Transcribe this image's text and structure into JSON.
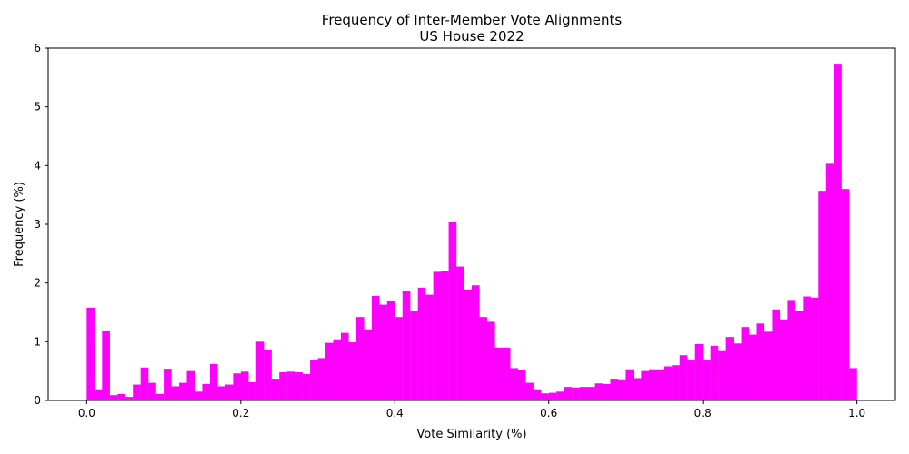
{
  "chart_data": {
    "type": "bar",
    "title": "Frequency of Inter-Member Vote Alignments",
    "subtitle": "US House 2022",
    "xlabel": "Vote Similarity (%)",
    "ylabel": "Frequency (%)",
    "xlim": [
      -0.05,
      1.05
    ],
    "ylim": [
      0,
      6
    ],
    "xticks": [
      {
        "value": 0.0,
        "label": "0.0"
      },
      {
        "value": 0.2,
        "label": "0.2"
      },
      {
        "value": 0.4,
        "label": "0.4"
      },
      {
        "value": 0.6,
        "label": "0.6"
      },
      {
        "value": 0.8,
        "label": "0.8"
      },
      {
        "value": 1.0,
        "label": "1.0"
      }
    ],
    "yticks": [
      {
        "value": 0,
        "label": "0"
      },
      {
        "value": 1,
        "label": "1"
      },
      {
        "value": 2,
        "label": "2"
      },
      {
        "value": 3,
        "label": "3"
      },
      {
        "value": 4,
        "label": "4"
      },
      {
        "value": 5,
        "label": "5"
      },
      {
        "value": 6,
        "label": "6"
      }
    ],
    "bar_color": "#ff00ff",
    "bins": {
      "start": 0.0,
      "end": 1.0,
      "count": 100
    },
    "values": [
      1.58,
      0.19,
      1.19,
      0.09,
      0.11,
      0.06,
      0.27,
      0.56,
      0.3,
      0.11,
      0.54,
      0.24,
      0.3,
      0.5,
      0.15,
      0.28,
      0.62,
      0.24,
      0.27,
      0.46,
      0.49,
      0.31,
      1.0,
      0.86,
      0.37,
      0.48,
      0.49,
      0.48,
      0.45,
      0.68,
      0.72,
      0.98,
      1.04,
      1.15,
      0.99,
      1.42,
      1.21,
      1.78,
      1.63,
      1.7,
      1.42,
      1.86,
      1.53,
      1.92,
      1.8,
      2.19,
      2.2,
      3.04,
      2.28,
      1.89,
      1.96,
      1.42,
      1.34,
      0.9,
      0.9,
      0.55,
      0.51,
      0.3,
      0.19,
      0.12,
      0.13,
      0.15,
      0.23,
      0.22,
      0.23,
      0.23,
      0.29,
      0.28,
      0.37,
      0.36,
      0.53,
      0.38,
      0.5,
      0.53,
      0.53,
      0.58,
      0.6,
      0.77,
      0.68,
      0.96,
      0.68,
      0.93,
      0.84,
      1.08,
      0.97,
      1.25,
      1.12,
      1.31,
      1.17,
      1.55,
      1.38,
      1.71,
      1.53,
      1.77,
      1.75,
      3.57,
      4.03,
      5.72,
      3.6,
      0.55
    ]
  }
}
